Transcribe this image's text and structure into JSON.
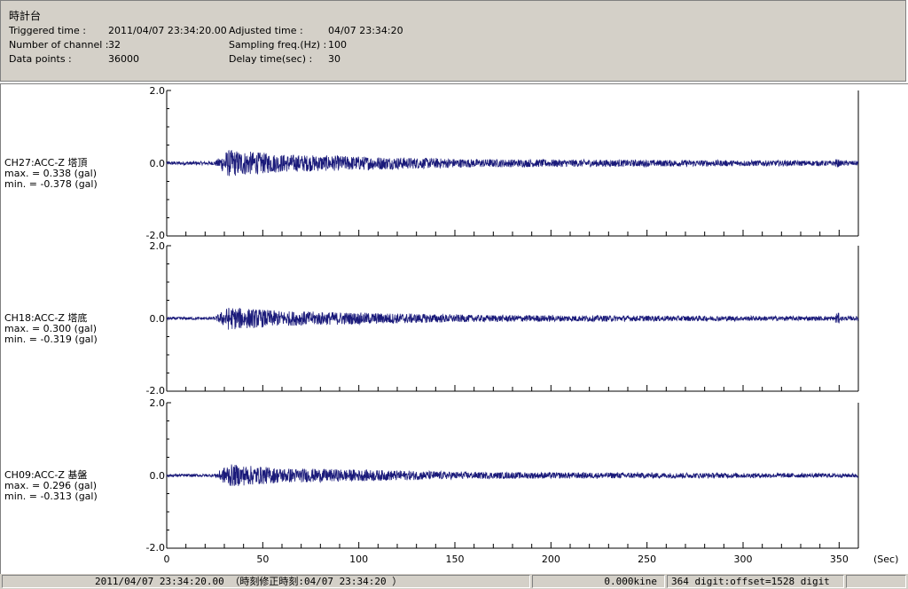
{
  "header": {
    "title": "時計台",
    "triggered_label": "Triggered time :",
    "triggered_value": "2011/04/07 23:34:20.00",
    "channels_label": "Number of channel :",
    "channels_value": "32",
    "points_label": "Data points :",
    "points_value": "36000",
    "adjusted_label": "Adjusted time :",
    "adjusted_value": "04/07 23:34:20",
    "sampling_label": "Sampling freq.(Hz) :",
    "sampling_value": "100",
    "delay_label": "Delay time(sec) :",
    "delay_value": "30"
  },
  "channels": [
    {
      "name": "CH27:ACC-Z 塔頂",
      "max": "max. = 0.338 (gal)",
      "min": "min. = -0.378 (gal)"
    },
    {
      "name": "CH18:ACC-Z 塔底",
      "max": "max. = 0.300 (gal)",
      "min": "min. = -0.319 (gal)"
    },
    {
      "name": "CH09:ACC-Z 基盤",
      "max": "max. = 0.296 (gal)",
      "min": "min. = -0.313 (gal)"
    }
  ],
  "statusbar": {
    "time": "2011/04/07 23:34:20.00 （時刻修正時刻:04/07 23:34:20 ）",
    "velocity": "0.000kine",
    "digit": "364 digit:offset=1528 digit"
  },
  "colors": {
    "trace": "#1a1a7a",
    "panel_bg": "#d4d0c8"
  },
  "chart_data": {
    "type": "line",
    "xlabel": "(Sec)",
    "xlim": [
      0,
      360
    ],
    "ylim": [
      -2.0,
      2.0
    ],
    "x_ticks": [
      "0",
      "50",
      "100",
      "150",
      "200",
      "250",
      "300",
      "350"
    ],
    "y_ticks": [
      "2.0",
      "0.0",
      "-2.0"
    ],
    "series": [
      {
        "name": "CH27:ACC-Z 塔頂",
        "max": 0.338,
        "min": -0.378
      },
      {
        "name": "CH18:ACC-Z 塔底",
        "max": 0.3,
        "min": -0.319
      },
      {
        "name": "CH09:ACC-Z 基盤",
        "max": 0.296,
        "min": -0.313
      }
    ]
  }
}
